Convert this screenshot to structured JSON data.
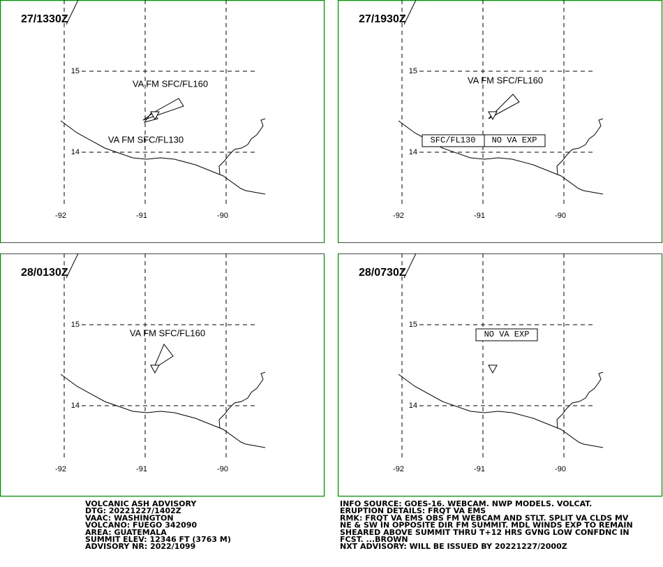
{
  "panels": [
    {
      "time": "27/1330Z",
      "lat_labels": [
        "15",
        "14"
      ],
      "lon_labels": [
        "-92",
        "-91",
        "-90"
      ],
      "annotations": [
        "VA FM SFC/FL160",
        "VA FM SFC/FL130"
      ]
    },
    {
      "time": "27/1930Z",
      "lat_labels": [
        "15",
        "14"
      ],
      "lon_labels": [
        "-92",
        "-91",
        "-90"
      ],
      "annotations": [
        "VA FM SFC/FL160",
        "SFC/FL130",
        "NO VA EXP"
      ]
    },
    {
      "time": "28/0130Z",
      "lat_labels": [
        "15",
        "14"
      ],
      "lon_labels": [
        "-92",
        "-91",
        "-90"
      ],
      "annotations": [
        "VA FM SFC/FL160"
      ]
    },
    {
      "time": "28/0730Z",
      "lat_labels": [
        "15",
        "14"
      ],
      "lon_labels": [
        "-92",
        "-91",
        "-90"
      ],
      "annotations": [
        "NO VA EXP"
      ]
    }
  ],
  "advisory_left": [
    "VOLCANIC ASH ADVISORY",
    "DTG: 20221227/1402Z",
    "VAAC: WASHINGTON",
    "VOLCANO: FUEGO 342090",
    "AREA: GUATEMALA",
    "SUMMIT ELEV: 12346 FT (3763 M)",
    "ADVISORY NR: 2022/1099"
  ],
  "advisory_right": [
    "INFO SOURCE: GOES-16. WEBCAM. NWP MODELS. VOLCAT.",
    "ERUPTION DETAILS: FRQT VA EMS",
    "RMK: FRQT VA EMS OBS FM WEBCAM AND STLT. SPLIT VA CLDS MV",
    "NE & SW IN OPPOSITE DIR FM SUMMIT. MDL WINDS EXP TO REMAIN",
    "SHEARED ABOVE SUMMIT THRU T+12 HRS GVNG LOW CONFDNC IN",
    "FCST. ...BROWN",
    "NXT ADVISORY: WILL BE ISSUED BY 20221227/2000Z"
  ]
}
